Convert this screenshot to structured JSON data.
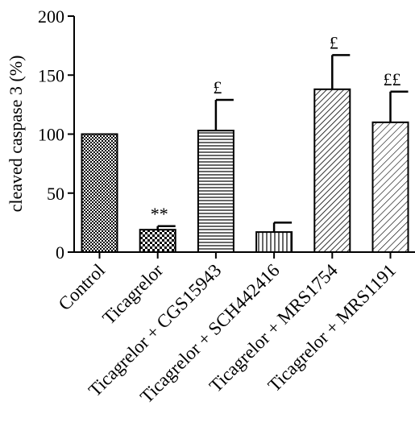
{
  "chart_data": {
    "type": "bar",
    "ylabel": "cleaved caspase 3 (%)",
    "xlabel": "",
    "ylim": [
      0,
      200
    ],
    "yticks": [
      "0",
      "50",
      "100",
      "150",
      "200"
    ],
    "categories": [
      "Control",
      "Ticagrelor",
      "Ticagrelor + CGS15943",
      "Ticagrelor + SCH442416",
      "Ticagrelor + MRS1754",
      "Ticagrelor + MRS1191"
    ],
    "values": [
      100,
      19,
      103,
      17,
      138,
      110
    ],
    "errors": [
      0,
      3,
      26,
      8,
      29,
      26
    ],
    "annotations": [
      "",
      "**",
      "£",
      "",
      "£",
      "££"
    ],
    "patterns": [
      "checker-fine",
      "checker-coarse",
      "horizontal-lines",
      "vertical-lines",
      "diagonal-dense",
      "diagonal-sparse"
    ],
    "grid": false,
    "legend": "none"
  }
}
